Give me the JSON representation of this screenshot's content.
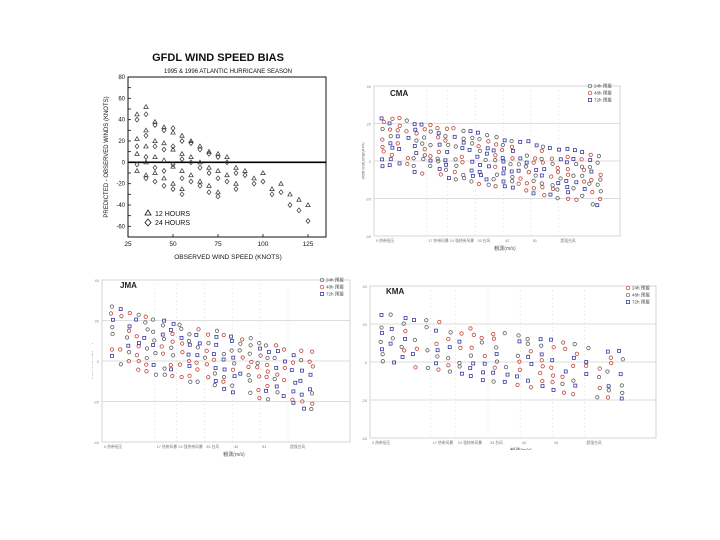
{
  "chart_data": [
    {
      "id": "gfdl",
      "type": "scatter",
      "title": "GFDL WIND SPEED BIAS",
      "subtitle": "1995 & 1996 ATLANTIC HURRICANE SEASON",
      "xlabel": "OBSERVED WIND SPEED (KNOTS)",
      "ylabel": "PREDICTED - OBSERVED WINDS (KNOTS)",
      "xlim": [
        25,
        135
      ],
      "ylim": [
        -70,
        80
      ],
      "xticks": [
        25,
        50,
        75,
        100,
        125
      ],
      "yticks": [
        -60,
        -50,
        -40,
        -30,
        -20,
        -10,
        0,
        10,
        20,
        30,
        40,
        50,
        60,
        70,
        80
      ],
      "zero_line": true,
      "marker_color": "#333333",
      "series": [
        {
          "name": "12 HOURS",
          "marker": "triangle",
          "points": [
            [
              30,
              45
            ],
            [
              30,
              22
            ],
            [
              30,
              8
            ],
            [
              30,
              -8
            ],
            [
              35,
              52
            ],
            [
              35,
              30
            ],
            [
              35,
              15
            ],
            [
              35,
              0
            ],
            [
              35,
              -12
            ],
            [
              40,
              38
            ],
            [
              40,
              20
            ],
            [
              40,
              5
            ],
            [
              40,
              -10
            ],
            [
              45,
              33
            ],
            [
              45,
              18
            ],
            [
              45,
              2
            ],
            [
              45,
              -15
            ],
            [
              50,
              28
            ],
            [
              50,
              12
            ],
            [
              50,
              -4
            ],
            [
              50,
              -20
            ],
            [
              55,
              25
            ],
            [
              55,
              8
            ],
            [
              55,
              -8
            ],
            [
              55,
              -25
            ],
            [
              60,
              20
            ],
            [
              60,
              5
            ],
            [
              60,
              -12
            ],
            [
              65,
              15
            ],
            [
              65,
              0
            ],
            [
              65,
              -18
            ],
            [
              70,
              10
            ],
            [
              70,
              -5
            ],
            [
              70,
              -22
            ],
            [
              75,
              8
            ],
            [
              75,
              -8
            ],
            [
              75,
              -28
            ],
            [
              80,
              5
            ],
            [
              80,
              -12
            ],
            [
              85,
              -5
            ],
            [
              85,
              -20
            ],
            [
              90,
              -8
            ],
            [
              95,
              -15
            ],
            [
              100,
              -10
            ],
            [
              105,
              -25
            ],
            [
              110,
              -20
            ],
            [
              115,
              -30
            ],
            [
              120,
              -35
            ],
            [
              125,
              -40
            ]
          ]
        },
        {
          "name": "24 HOURS",
          "marker": "diamond",
          "points": [
            [
              30,
              40
            ],
            [
              30,
              15
            ],
            [
              30,
              -2
            ],
            [
              35,
              45
            ],
            [
              35,
              25
            ],
            [
              35,
              5
            ],
            [
              35,
              -15
            ],
            [
              40,
              35
            ],
            [
              40,
              15
            ],
            [
              40,
              -5
            ],
            [
              40,
              -18
            ],
            [
              45,
              30
            ],
            [
              45,
              12
            ],
            [
              45,
              -8
            ],
            [
              45,
              -22
            ],
            [
              50,
              32
            ],
            [
              50,
              15
            ],
            [
              50,
              -2
            ],
            [
              50,
              -25
            ],
            [
              55,
              20
            ],
            [
              55,
              3
            ],
            [
              55,
              -15
            ],
            [
              55,
              -30
            ],
            [
              60,
              18
            ],
            [
              60,
              0
            ],
            [
              60,
              -18
            ],
            [
              65,
              12
            ],
            [
              65,
              -5
            ],
            [
              65,
              -22
            ],
            [
              70,
              8
            ],
            [
              70,
              -10
            ],
            [
              70,
              -28
            ],
            [
              75,
              5
            ],
            [
              75,
              -15
            ],
            [
              75,
              -32
            ],
            [
              80,
              0
            ],
            [
              80,
              -18
            ],
            [
              85,
              -10
            ],
            [
              85,
              -25
            ],
            [
              90,
              -12
            ],
            [
              95,
              -20
            ],
            [
              100,
              -18
            ],
            [
              105,
              -30
            ],
            [
              110,
              -28
            ],
            [
              115,
              -40
            ],
            [
              120,
              -45
            ],
            [
              125,
              -55
            ]
          ]
        }
      ]
    },
    {
      "id": "cma",
      "type": "scatter",
      "title": "CMA",
      "xlabel": "観測(m/s)",
      "ylabel": "预报与观测差(m/s)",
      "xlim": [
        0,
        80
      ],
      "ylim": [
        -40,
        40
      ],
      "xticks": [
        0,
        10,
        20,
        30,
        40,
        50,
        60,
        70,
        80
      ],
      "xtick_labels": [
        "0 热带低压",
        "17 热带风暴",
        "24 强热带风暴",
        "33 台风",
        "42",
        "51",
        "超强台风"
      ],
      "hlines": [
        20,
        0,
        -20
      ],
      "legend": [
        {
          "label": "24h 预报",
          "color": "#555555"
        },
        {
          "label": "48h 预报",
          "color": "#c0392b"
        },
        {
          "label": "72h 预报",
          "color": "#2c2c9c"
        }
      ]
    },
    {
      "id": "jma",
      "type": "scatter",
      "title": "JMA",
      "xlabel": "観測(m/s)",
      "ylabel": "预报与观测差(m/s)",
      "xlim": [
        0,
        80
      ],
      "ylim": [
        -40,
        40
      ],
      "xtick_labels": [
        "0 热带低压",
        "17 热带风暴",
        "24 强热带风暴",
        "33 台风",
        "42",
        "51",
        "超强台风"
      ],
      "hlines": [
        20,
        0,
        -20
      ],
      "legend": [
        {
          "label": "24h 预报",
          "color": "#555555"
        },
        {
          "label": "48h 预报",
          "color": "#c0392b"
        },
        {
          "label": "72h 预报",
          "color": "#2c2c9c"
        }
      ]
    },
    {
      "id": "kma",
      "type": "scatter",
      "title": "KMA",
      "xlabel": "観測(m/s)",
      "ylabel": "预报与观测差(m/s)",
      "xlim": [
        0,
        80
      ],
      "ylim": [
        -40,
        40
      ],
      "xtick_labels": [
        "0 热带低压",
        "17 热带风暴",
        "24 强热带风暴",
        "33 台风",
        "42",
        "51",
        "超强台风"
      ],
      "hlines": [
        20,
        0,
        -20
      ],
      "legend": [
        {
          "label": "24h 预报",
          "color": "#c0392b"
        },
        {
          "label": "48h 预报",
          "color": "#555555"
        },
        {
          "label": "72h 预报",
          "color": "#2c2c9c"
        }
      ]
    }
  ]
}
